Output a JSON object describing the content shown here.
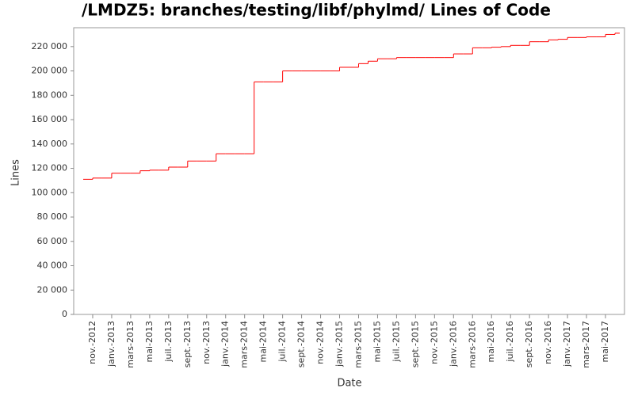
{
  "chart_data": {
    "type": "step",
    "title": "/LMDZ5: branches/testing/libf/phylmd/ Lines of Code",
    "x_label": "Date",
    "y_label": "Lines",
    "color": "#ff0000",
    "x": [
      "2012-10",
      "2012-11",
      "2012-12",
      "2013-01",
      "2013-02",
      "2013-03",
      "2013-04",
      "2013-05",
      "2013-06",
      "2013-07",
      "2013-08",
      "2013-09",
      "2013-10",
      "2013-11",
      "2013-12",
      "2014-01",
      "2014-02",
      "2014-03",
      "2014-04",
      "2014-05",
      "2014-06",
      "2014-07",
      "2014-08",
      "2014-09",
      "2014-10",
      "2014-11",
      "2014-12",
      "2015-01",
      "2015-02",
      "2015-03",
      "2015-04",
      "2015-05",
      "2015-06",
      "2015-07",
      "2015-08",
      "2015-09",
      "2015-10",
      "2015-11",
      "2015-12",
      "2016-01",
      "2016-02",
      "2016-03",
      "2016-04",
      "2016-05",
      "2016-06",
      "2016-07",
      "2016-08",
      "2016-09",
      "2016-10",
      "2016-11",
      "2016-12",
      "2017-01",
      "2017-02",
      "2017-03",
      "2017-04",
      "2017-05",
      "2017-06"
    ],
    "values": [
      111000,
      112000,
      112000,
      116000,
      116000,
      116000,
      118000,
      118500,
      118500,
      121000,
      121000,
      126000,
      126000,
      126000,
      132000,
      132000,
      132000,
      132000,
      191000,
      191000,
      191000,
      200000,
      200000,
      200000,
      200000,
      200000,
      200000,
      203000,
      203000,
      206000,
      208000,
      210000,
      210000,
      211000,
      211000,
      211000,
      211000,
      211000,
      211000,
      214000,
      214000,
      219000,
      219000,
      219500,
      220000,
      221000,
      221000,
      224000,
      224000,
      225500,
      226000,
      227500,
      227500,
      228000,
      228000,
      230000,
      231000
    ],
    "xlim": [
      "2012-09",
      "2017-07"
    ],
    "xticks": [
      {
        "value": "2012-11",
        "label": "nov.-2012"
      },
      {
        "value": "2013-01",
        "label": "janv.-2013"
      },
      {
        "value": "2013-03",
        "label": "mars-2013"
      },
      {
        "value": "2013-05",
        "label": "mai-2013"
      },
      {
        "value": "2013-07",
        "label": "juil.-2013"
      },
      {
        "value": "2013-09",
        "label": "sept.-2013"
      },
      {
        "value": "2013-11",
        "label": "nov.-2013"
      },
      {
        "value": "2014-01",
        "label": "janv.-2014"
      },
      {
        "value": "2014-03",
        "label": "mars-2014"
      },
      {
        "value": "2014-05",
        "label": "mai-2014"
      },
      {
        "value": "2014-07",
        "label": "juil.-2014"
      },
      {
        "value": "2014-09",
        "label": "sept.-2014"
      },
      {
        "value": "2014-11",
        "label": "nov.-2014"
      },
      {
        "value": "2015-01",
        "label": "janv.-2015"
      },
      {
        "value": "2015-03",
        "label": "mars-2015"
      },
      {
        "value": "2015-05",
        "label": "mai-2015"
      },
      {
        "value": "2015-07",
        "label": "juil.-2015"
      },
      {
        "value": "2015-09",
        "label": "sept.-2015"
      },
      {
        "value": "2015-11",
        "label": "nov.-2015"
      },
      {
        "value": "2016-01",
        "label": "janv.-2016"
      },
      {
        "value": "2016-03",
        "label": "mars-2016"
      },
      {
        "value": "2016-05",
        "label": "mai-2016"
      },
      {
        "value": "2016-07",
        "label": "juil.-2016"
      },
      {
        "value": "2016-09",
        "label": "sept.-2016"
      },
      {
        "value": "2016-11",
        "label": "nov.-2016"
      },
      {
        "value": "2017-01",
        "label": "janv.-2017"
      },
      {
        "value": "2017-03",
        "label": "mars-2017"
      },
      {
        "value": "2017-05",
        "label": "mai-2017"
      }
    ],
    "ylim": [
      0,
      235500
    ],
    "yticks": [
      0,
      {
        "value": 20000,
        "label": "20 000"
      },
      {
        "value": 40000,
        "label": "40 000"
      },
      {
        "value": 60000,
        "label": "60 000"
      },
      {
        "value": 80000,
        "label": "80 000"
      },
      {
        "value": 100000,
        "label": "100 000"
      },
      {
        "value": 120000,
        "label": "120 000"
      },
      {
        "value": 140000,
        "label": "140 000"
      },
      {
        "value": 160000,
        "label": "160 000"
      },
      {
        "value": 180000,
        "label": "180 000"
      },
      {
        "value": 200000,
        "label": "200 000"
      },
      {
        "value": 220000,
        "label": "220 000"
      }
    ],
    "grid": false
  }
}
